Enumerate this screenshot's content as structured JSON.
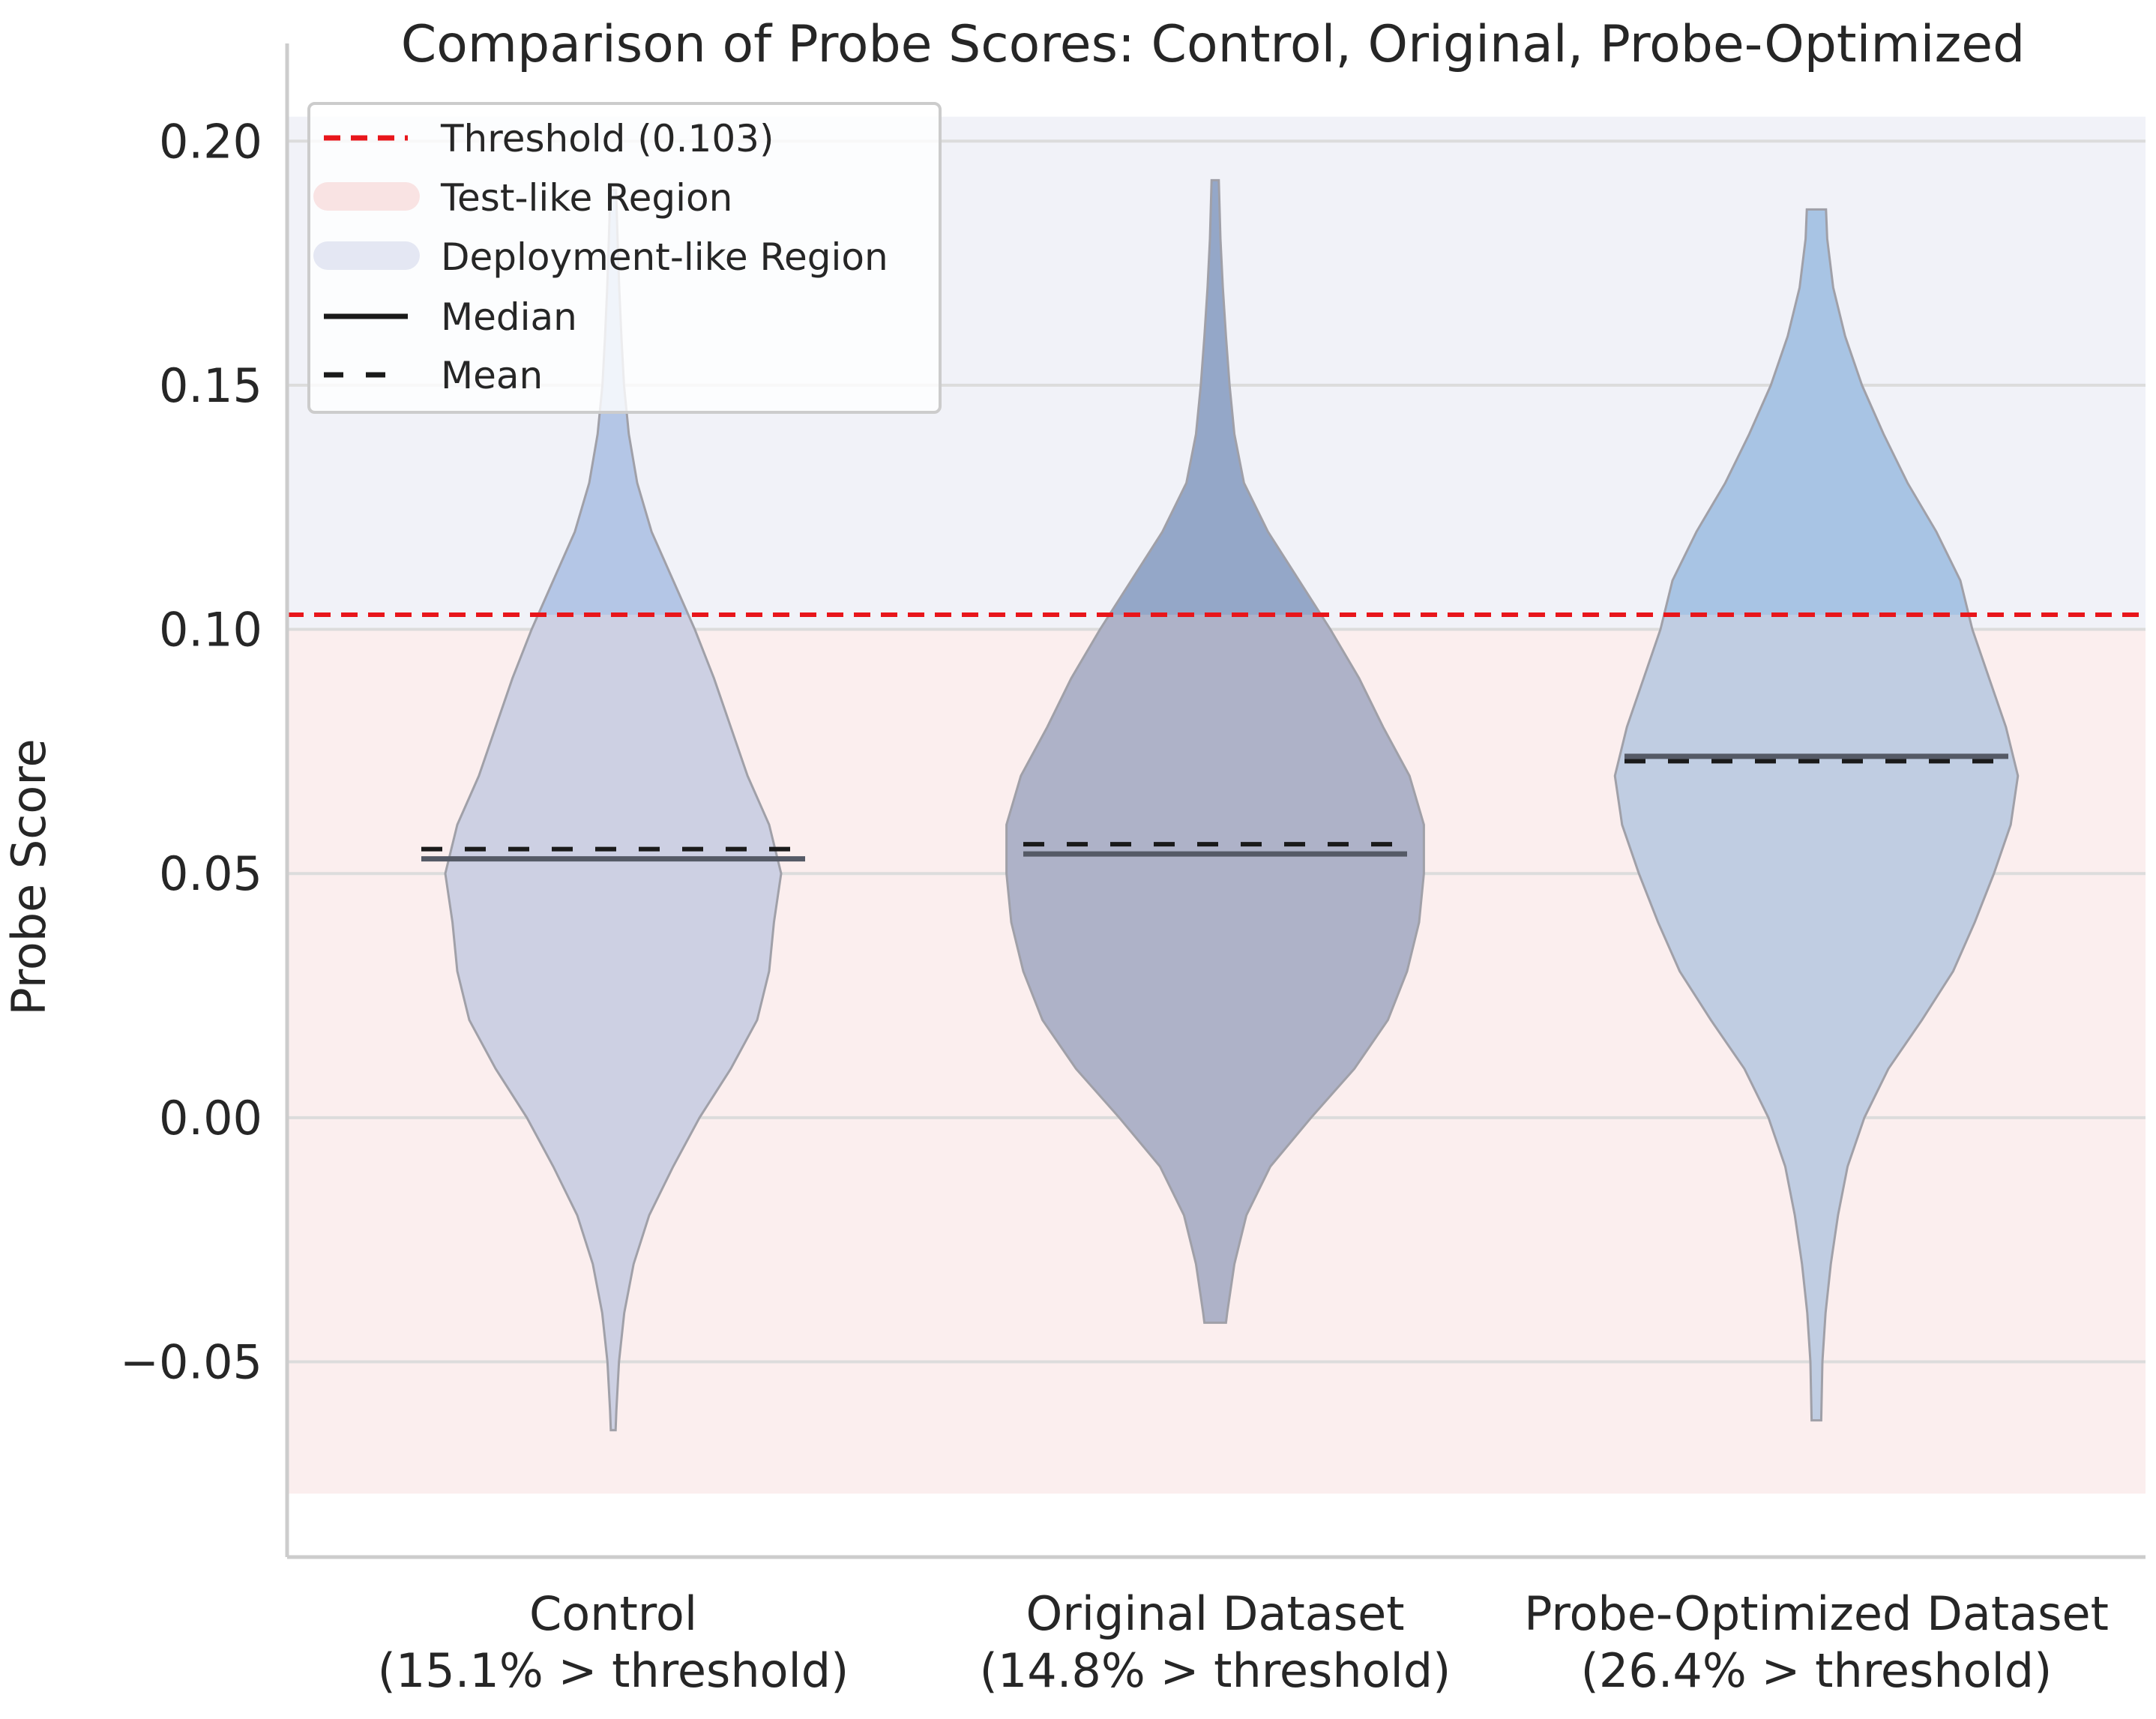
{
  "chart_data": {
    "type": "violin",
    "title": "Comparison of Probe Scores: Control, Original, Probe-Optimized",
    "xlabel": "",
    "ylabel": "Probe Score",
    "ylim": [
      -0.09,
      0.22
    ],
    "yticks": [
      -0.05,
      0.0,
      0.05,
      0.1,
      0.15,
      0.2
    ],
    "ytick_labels": [
      "−0.05",
      "0.00",
      "0.05",
      "0.10",
      "0.15",
      "0.20"
    ],
    "grid": true,
    "legend_position": "top-left",
    "threshold": {
      "value": 0.103,
      "label": "Threshold (0.103)",
      "color": "#e8161b"
    },
    "regions": [
      {
        "name": "Test-like Region",
        "from": -0.077,
        "to": 0.1,
        "color": "#f9e3e3"
      },
      {
        "name": "Deployment-like Region",
        "from": 0.1,
        "to": 0.205,
        "color": "#e8eaf4"
      }
    ],
    "legend": [
      {
        "label": "Threshold (0.103)",
        "style": "red-dashed"
      },
      {
        "label": "Test-like Region",
        "style": "patch-pink"
      },
      {
        "label": "Deployment-like Region",
        "style": "patch-blue"
      },
      {
        "label": "Median",
        "style": "solid"
      },
      {
        "label": "Mean",
        "style": "dashed"
      }
    ],
    "series": [
      {
        "name": "Control",
        "category_line1": "Control",
        "category_line2": "(15.1% > threshold)",
        "percent_above_threshold": 15.1,
        "median": 0.053,
        "mean": 0.055,
        "min": -0.064,
        "max": 0.19,
        "color_above": "#b4c6e6",
        "color_below": "#cdd0e3",
        "density": [
          [
            -0.064,
            0.01
          ],
          [
            -0.06,
            0.013
          ],
          [
            -0.05,
            0.024
          ],
          [
            -0.04,
            0.046
          ],
          [
            -0.03,
            0.085
          ],
          [
            -0.02,
            0.15
          ],
          [
            -0.01,
            0.25
          ],
          [
            0.0,
            0.36
          ],
          [
            0.01,
            0.49
          ],
          [
            0.02,
            0.6
          ],
          [
            0.03,
            0.65
          ],
          [
            0.04,
            0.67
          ],
          [
            0.05,
            0.7
          ],
          [
            0.06,
            0.65
          ],
          [
            0.07,
            0.56
          ],
          [
            0.08,
            0.49
          ],
          [
            0.09,
            0.42
          ],
          [
            0.1,
            0.34
          ],
          [
            0.11,
            0.25
          ],
          [
            0.12,
            0.16
          ],
          [
            0.13,
            0.1
          ],
          [
            0.14,
            0.065
          ],
          [
            0.15,
            0.045
          ],
          [
            0.16,
            0.034
          ],
          [
            0.17,
            0.025
          ],
          [
            0.18,
            0.018
          ],
          [
            0.19,
            0.012
          ]
        ]
      },
      {
        "name": "Original Dataset",
        "category_line1": "Original Dataset",
        "category_line2": "(14.8% > threshold)",
        "percent_above_threshold": 14.8,
        "median": 0.054,
        "mean": 0.056,
        "min": -0.042,
        "max": 0.192,
        "color_above": "#94a7c8",
        "color_below": "#aeb2c8",
        "density": [
          [
            -0.042,
            0.045
          ],
          [
            -0.04,
            0.05
          ],
          [
            -0.03,
            0.08
          ],
          [
            -0.02,
            0.13
          ],
          [
            -0.01,
            0.23
          ],
          [
            0.0,
            0.4
          ],
          [
            0.01,
            0.58
          ],
          [
            0.02,
            0.72
          ],
          [
            0.03,
            0.8
          ],
          [
            0.04,
            0.85
          ],
          [
            0.05,
            0.87
          ],
          [
            0.06,
            0.87
          ],
          [
            0.07,
            0.81
          ],
          [
            0.08,
            0.7
          ],
          [
            0.09,
            0.6
          ],
          [
            0.1,
            0.48
          ],
          [
            0.11,
            0.35
          ],
          [
            0.12,
            0.22
          ],
          [
            0.13,
            0.12
          ],
          [
            0.14,
            0.08
          ],
          [
            0.15,
            0.06
          ],
          [
            0.16,
            0.045
          ],
          [
            0.17,
            0.032
          ],
          [
            0.18,
            0.022
          ],
          [
            0.192,
            0.015
          ]
        ]
      },
      {
        "name": "Probe-Optimized Dataset",
        "category_line1": "Probe-Optimized Dataset",
        "category_line2": "(26.4% > threshold)",
        "percent_above_threshold": 26.4,
        "median": 0.074,
        "mean": 0.073,
        "min": -0.062,
        "max": 0.186,
        "color_above": "#a8c4e4",
        "color_below": "#c0cde2",
        "density": [
          [
            -0.062,
            0.02
          ],
          [
            -0.05,
            0.025
          ],
          [
            -0.04,
            0.038
          ],
          [
            -0.03,
            0.06
          ],
          [
            -0.02,
            0.09
          ],
          [
            -0.01,
            0.13
          ],
          [
            0.0,
            0.2
          ],
          [
            0.01,
            0.3
          ],
          [
            0.02,
            0.44
          ],
          [
            0.03,
            0.57
          ],
          [
            0.04,
            0.66
          ],
          [
            0.05,
            0.74
          ],
          [
            0.06,
            0.81
          ],
          [
            0.07,
            0.84
          ],
          [
            0.08,
            0.79
          ],
          [
            0.09,
            0.72
          ],
          [
            0.1,
            0.65
          ],
          [
            0.11,
            0.6
          ],
          [
            0.12,
            0.5
          ],
          [
            0.13,
            0.38
          ],
          [
            0.14,
            0.28
          ],
          [
            0.15,
            0.19
          ],
          [
            0.16,
            0.12
          ],
          [
            0.17,
            0.07
          ],
          [
            0.18,
            0.045
          ],
          [
            0.186,
            0.04
          ]
        ]
      }
    ]
  }
}
